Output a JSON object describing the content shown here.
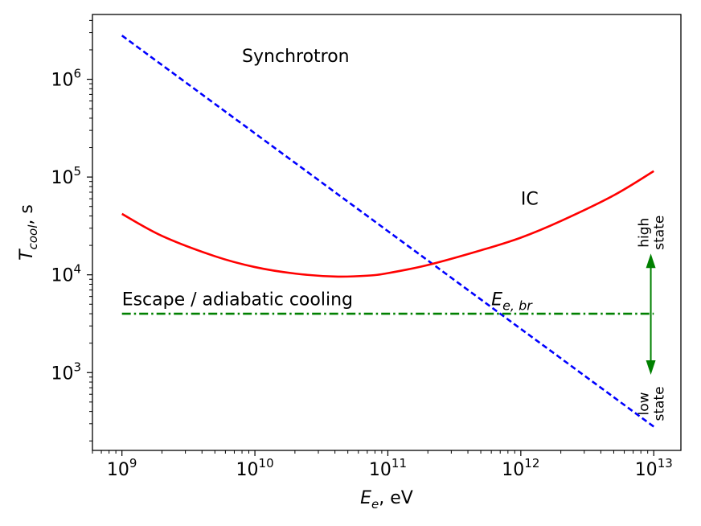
{
  "chart_data": {
    "type": "line",
    "title": "",
    "xlabel": {
      "symbol": "E",
      "subscript": "e",
      "unit": ", eV"
    },
    "ylabel": {
      "symbol": "T",
      "subscript": "cool",
      "unit": ", s"
    },
    "xscale": "log",
    "yscale": "log",
    "xlim": [
      600000000.0,
      16000000000000.0
    ],
    "ylim": [
      160,
      4600000.0
    ],
    "x_ticks": [
      {
        "value": 1000000000.0,
        "base": "10",
        "exp": "9"
      },
      {
        "value": 10000000000.0,
        "base": "10",
        "exp": "10"
      },
      {
        "value": 100000000000.0,
        "base": "10",
        "exp": "11"
      },
      {
        "value": 1000000000000.0,
        "base": "10",
        "exp": "12"
      },
      {
        "value": 10000000000000.0,
        "base": "10",
        "exp": "13"
      }
    ],
    "y_ticks": [
      {
        "value": 1000.0,
        "base": "10",
        "exp": "3"
      },
      {
        "value": 10000.0,
        "base": "10",
        "exp": "4"
      },
      {
        "value": 100000.0,
        "base": "10",
        "exp": "5"
      },
      {
        "value": 1000000.0,
        "base": "10",
        "exp": "6"
      }
    ],
    "series": [
      {
        "name": "Synchrotron",
        "style": "dashed",
        "color": "#0000ff",
        "x": [
          1000000000.0,
          10000000000000.0
        ],
        "y": [
          2800000.0,
          280
        ]
      },
      {
        "name": "IC",
        "style": "solid",
        "color": "#ff0000",
        "x": [
          1000000000.0,
          2000000000.0,
          5000000000.0,
          10000000000.0,
          20000000000.0,
          40000000000.0,
          70000000000.0,
          100000000000.0,
          200000000000.0,
          500000000000.0,
          1000000000000.0,
          2000000000000.0,
          5000000000000.0,
          10000000000000.0
        ],
        "y": [
          42000,
          25000,
          15500,
          12000,
          10300,
          9600,
          9800,
          10400,
          12600,
          17800,
          24000,
          35500,
          65000,
          115000
        ]
      },
      {
        "name": "Escape / adiabatic cooling",
        "style": "dashdot",
        "color": "#008000",
        "x": [
          1000000000.0,
          10000000000000.0
        ],
        "y": [
          4000,
          4000
        ]
      }
    ],
    "annotations": {
      "synchrotron": {
        "text": "Synchrotron",
        "x": 8000000000.0,
        "y": 1500000.0
      },
      "ic": {
        "text": "IC",
        "x": 1000000000000.0,
        "y": 52000.0
      },
      "escape": {
        "text": "Escape / adiabatic cooling",
        "x": 1000000000.0,
        "y": 4900
      },
      "ebr": {
        "symbol": "E",
        "subscript": "e, br",
        "x": 600000000000.0,
        "y": 4900
      },
      "high_state": {
        "line1": "high",
        "line2": "state",
        "x": 9500000000000.0,
        "y": 27000.0
      },
      "low_state": {
        "line1": "low",
        "line2": "state",
        "x": 9500000000000.0,
        "y": 480
      },
      "arrow_up": {
        "x": 9500000000000.0,
        "from": 4000,
        "to": 16500.0,
        "color": "#008000"
      },
      "arrow_down": {
        "x": 9500000000000.0,
        "from": 4000,
        "to": 950,
        "color": "#008000"
      }
    }
  }
}
